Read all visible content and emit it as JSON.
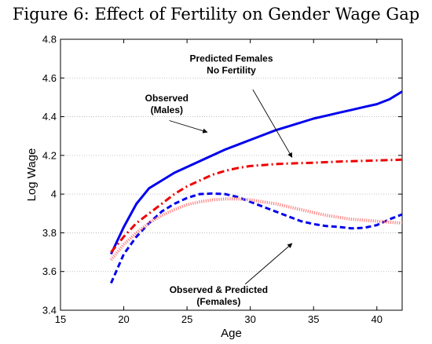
{
  "figure_title": "Figure 6: Effect of Fertility on Gender Wage Gap",
  "chart_data": {
    "type": "line",
    "xlabel": "Age",
    "ylabel": "Log Wage",
    "xlim": [
      15,
      42
    ],
    "ylim": [
      3.4,
      4.8
    ],
    "x_ticks": [
      15,
      20,
      25,
      30,
      35,
      40
    ],
    "y_ticks": [
      3.4,
      3.6,
      3.8,
      4.0,
      4.2,
      4.4,
      4.6,
      4.8
    ],
    "y_tick_labels": [
      "3.4",
      "3.6",
      "3.8",
      "4",
      "4.2",
      "4.4",
      "4.6",
      "4.8"
    ],
    "grid": "horizontal dotted",
    "series": [
      {
        "key": "observed-males",
        "color": "#0000ee",
        "style": "solid",
        "x": [
          19,
          20,
          21,
          22,
          23,
          24,
          25,
          26,
          27,
          28,
          29,
          30,
          31,
          32,
          33,
          34,
          35,
          36,
          37,
          38,
          39,
          40,
          41,
          42
        ],
        "y": [
          3.69,
          3.83,
          3.95,
          4.03,
          4.07,
          4.11,
          4.14,
          4.17,
          4.2,
          4.23,
          4.255,
          4.28,
          4.305,
          4.33,
          4.35,
          4.37,
          4.39,
          4.405,
          4.42,
          4.435,
          4.45,
          4.465,
          4.49,
          4.53
        ]
      },
      {
        "key": "predicted-females-no-fertility",
        "color": "#ee0000",
        "style": "dashdot",
        "x": [
          19,
          20,
          21,
          22,
          23,
          24,
          25,
          26,
          27,
          28,
          29,
          30,
          31,
          32,
          33,
          34,
          35,
          36,
          37,
          38,
          39,
          40,
          41,
          42
        ],
        "y": [
          3.7,
          3.78,
          3.85,
          3.9,
          3.95,
          4.0,
          4.04,
          4.07,
          4.1,
          4.12,
          4.135,
          4.145,
          4.15,
          4.155,
          4.158,
          4.16,
          4.162,
          4.165,
          4.168,
          4.17,
          4.172,
          4.174,
          4.176,
          4.178
        ]
      },
      {
        "key": "observed-females",
        "color": "#0000ee",
        "style": "dashed",
        "x": [
          19,
          20,
          21,
          22,
          23,
          24,
          25,
          26,
          27,
          28,
          29,
          30,
          31,
          32,
          33,
          34,
          35,
          36,
          37,
          38,
          39,
          40,
          41,
          42
        ],
        "y": [
          3.54,
          3.69,
          3.78,
          3.85,
          3.91,
          3.95,
          3.98,
          4.0,
          4.003,
          4.0,
          3.985,
          3.96,
          3.935,
          3.91,
          3.885,
          3.86,
          3.845,
          3.835,
          3.83,
          3.823,
          3.826,
          3.84,
          3.87,
          3.895
        ]
      },
      {
        "key": "predicted-females",
        "color": "#ff8080",
        "style": "dotted",
        "x": [
          19,
          20,
          21,
          22,
          23,
          24,
          25,
          26,
          27,
          28,
          29,
          30,
          31,
          32,
          33,
          34,
          35,
          36,
          37,
          38,
          39,
          40,
          41,
          42
        ],
        "y": [
          3.66,
          3.74,
          3.8,
          3.85,
          3.89,
          3.92,
          3.945,
          3.96,
          3.97,
          3.975,
          3.975,
          3.97,
          3.96,
          3.95,
          3.935,
          3.92,
          3.905,
          3.89,
          3.88,
          3.87,
          3.865,
          3.86,
          3.855,
          3.85
        ]
      }
    ],
    "annotations": [
      {
        "key": "annot-predicted-no-fertility",
        "lines": [
          "Predicted Females",
          "No Fertility"
        ],
        "text_x": 28.5,
        "text_y": 4.685,
        "arrow_from": [
          30.2,
          4.54
        ],
        "arrow_to": [
          33.3,
          4.19
        ]
      },
      {
        "key": "annot-observed-males",
        "lines": [
          "Observed",
          "(Males)"
        ],
        "text_x": 23.4,
        "text_y": 4.48,
        "arrow_from": [
          23.6,
          4.38
        ],
        "arrow_to": [
          26.6,
          4.32
        ]
      },
      {
        "key": "annot-observed-predicted-females",
        "lines": [
          "Observed & Predicted",
          "(Females)"
        ],
        "text_x": 27.5,
        "text_y": 3.49,
        "arrow_from": [
          29.6,
          3.535
        ],
        "arrow_to": [
          33.3,
          3.745
        ]
      }
    ]
  }
}
